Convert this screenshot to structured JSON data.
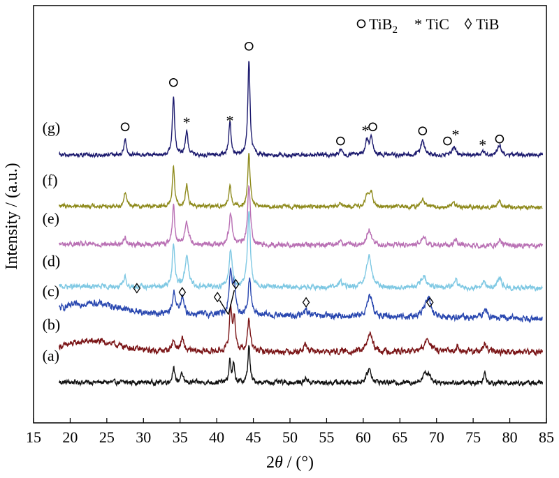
{
  "chart_data": {
    "type": "line",
    "xlabel": {
      "pre": "2",
      "italic": "θ",
      "post": " / (°)"
    },
    "ylabel": "Intensity / (a.u.)",
    "xlim": [
      15,
      85
    ],
    "ylim": [
      0,
      10
    ],
    "xticks": [
      15,
      20,
      25,
      30,
      35,
      40,
      45,
      50,
      55,
      60,
      65,
      70,
      75,
      80,
      85
    ],
    "grid": false,
    "legend": {
      "position": "top-right",
      "entries": [
        {
          "symbol": "circle",
          "label": "TiB",
          "sub": "2"
        },
        {
          "symbol": "star",
          "label": "TiC"
        },
        {
          "symbol": "diamond",
          "label": "TiB"
        }
      ]
    },
    "series": [
      {
        "name": "(a)",
        "color": "#111111",
        "baseline": 0.85,
        "tilt": 0.02,
        "noise": 0.1,
        "hump": 0.0,
        "peaks": [
          [
            34.1,
            0.4,
            0.16
          ],
          [
            35.2,
            0.25,
            0.16
          ],
          [
            41.8,
            0.55,
            0.15
          ],
          [
            42.3,
            0.45,
            0.15
          ],
          [
            44.4,
            0.95,
            0.16
          ],
          [
            52.2,
            0.12,
            0.2
          ],
          [
            60.8,
            0.35,
            0.35
          ],
          [
            68.4,
            0.2,
            0.4
          ],
          [
            69.0,
            0.18,
            0.3
          ],
          [
            76.6,
            0.25,
            0.2
          ]
        ]
      },
      {
        "name": "(b)",
        "color": "#7a1416",
        "baseline": 1.62,
        "tilt": 0.02,
        "noise": 0.12,
        "hump": 0.25,
        "peaks": [
          [
            34.1,
            0.25,
            0.3
          ],
          [
            35.3,
            0.3,
            0.25
          ],
          [
            41.9,
            1.05,
            0.2
          ],
          [
            42.4,
            0.8,
            0.2
          ],
          [
            44.4,
            0.8,
            0.22
          ],
          [
            52.1,
            0.2,
            0.2
          ],
          [
            60.9,
            0.45,
            0.4
          ],
          [
            68.8,
            0.3,
            0.5
          ],
          [
            72.9,
            0.15,
            0.3
          ],
          [
            76.6,
            0.2,
            0.25
          ]
        ]
      },
      {
        "name": "(c)",
        "color": "#2a48b0",
        "baseline": 2.45,
        "tilt": 0.14,
        "noise": 0.13,
        "hump": 0.25,
        "peaks": [
          [
            34.2,
            0.55,
            0.25
          ],
          [
            35.3,
            0.4,
            0.25
          ],
          [
            41.9,
            1.05,
            0.25
          ],
          [
            42.4,
            0.7,
            0.2
          ],
          [
            44.5,
            0.95,
            0.22
          ],
          [
            52.2,
            0.15,
            0.25
          ],
          [
            60.9,
            0.5,
            0.4
          ],
          [
            68.6,
            0.3,
            0.5
          ],
          [
            69.0,
            0.25,
            0.3
          ],
          [
            76.6,
            0.25,
            0.25
          ]
        ]
      },
      {
        "name": "(d)",
        "color": "#7ec8e3",
        "baseline": 3.2,
        "tilt": 0.04,
        "noise": 0.1,
        "hump": 0.0,
        "peaks": [
          [
            27.5,
            0.25,
            0.2
          ],
          [
            34.1,
            1.1,
            0.2
          ],
          [
            35.9,
            0.75,
            0.3
          ],
          [
            41.9,
            0.95,
            0.25
          ],
          [
            44.4,
            1.95,
            0.22
          ],
          [
            56.9,
            0.15,
            0.3
          ],
          [
            60.8,
            0.8,
            0.4
          ],
          [
            68.2,
            0.3,
            0.4
          ],
          [
            72.6,
            0.2,
            0.3
          ],
          [
            76.4,
            0.15,
            0.3
          ],
          [
            78.6,
            0.25,
            0.3
          ]
        ]
      },
      {
        "name": "(e)",
        "color": "#b970b4",
        "baseline": 4.25,
        "tilt": 0.04,
        "noise": 0.1,
        "hump": 0.0,
        "peaks": [
          [
            27.5,
            0.2,
            0.2
          ],
          [
            34.1,
            0.95,
            0.2
          ],
          [
            35.9,
            0.55,
            0.3
          ],
          [
            41.9,
            0.8,
            0.25
          ],
          [
            44.4,
            1.5,
            0.22
          ],
          [
            56.9,
            0.12,
            0.3
          ],
          [
            60.8,
            0.4,
            0.35
          ],
          [
            68.2,
            0.2,
            0.4
          ],
          [
            72.6,
            0.15,
            0.3
          ],
          [
            78.6,
            0.15,
            0.3
          ]
        ]
      },
      {
        "name": "(f)",
        "color": "#8e8a1c",
        "baseline": 5.2,
        "tilt": 0.04,
        "noise": 0.08,
        "hump": 0.0,
        "peaks": [
          [
            27.5,
            0.35,
            0.2
          ],
          [
            34.1,
            0.95,
            0.18
          ],
          [
            35.9,
            0.55,
            0.2
          ],
          [
            41.8,
            0.55,
            0.18
          ],
          [
            44.4,
            1.35,
            0.18
          ],
          [
            56.9,
            0.1,
            0.25
          ],
          [
            60.5,
            0.3,
            0.25
          ],
          [
            61.1,
            0.35,
            0.25
          ],
          [
            68.1,
            0.2,
            0.3
          ],
          [
            72.3,
            0.12,
            0.3
          ],
          [
            78.6,
            0.15,
            0.3
          ]
        ]
      },
      {
        "name": "(g)",
        "color": "#1c1a6e",
        "baseline": 6.5,
        "tilt": 0.0,
        "noise": 0.08,
        "hump": 0.0,
        "peaks": [
          [
            27.5,
            0.42,
            0.18
          ],
          [
            34.1,
            1.45,
            0.18
          ],
          [
            35.9,
            0.6,
            0.2
          ],
          [
            41.8,
            0.85,
            0.18
          ],
          [
            44.4,
            2.35,
            0.18
          ],
          [
            56.9,
            0.15,
            0.25
          ],
          [
            60.5,
            0.35,
            0.25
          ],
          [
            61.1,
            0.4,
            0.25
          ],
          [
            68.1,
            0.35,
            0.3
          ],
          [
            72.4,
            0.2,
            0.3
          ],
          [
            76.3,
            0.1,
            0.25
          ],
          [
            78.6,
            0.25,
            0.3
          ]
        ]
      }
    ],
    "annotations": [
      {
        "symbol": "circle",
        "x": 27.5,
        "y": 7.2
      },
      {
        "symbol": "circle",
        "x": 34.1,
        "y": 8.3
      },
      {
        "symbol": "star",
        "x": 35.9,
        "y": 7.35
      },
      {
        "symbol": "star",
        "x": 41.8,
        "y": 7.4
      },
      {
        "symbol": "circle",
        "x": 44.4,
        "y": 9.2
      },
      {
        "symbol": "circle",
        "x": 56.9,
        "y": 6.85
      },
      {
        "symbol": "star",
        "x": 60.3,
        "y": 7.15
      },
      {
        "symbol": "circle",
        "x": 61.3,
        "y": 7.2
      },
      {
        "symbol": "circle",
        "x": 68.1,
        "y": 7.1
      },
      {
        "symbol": "circle",
        "x": 71.5,
        "y": 6.85
      },
      {
        "symbol": "star",
        "x": 72.6,
        "y": 7.05
      },
      {
        "symbol": "star",
        "x": 76.3,
        "y": 6.8
      },
      {
        "symbol": "circle",
        "x": 78.6,
        "y": 6.9
      },
      {
        "symbol": "diamond",
        "x": 29.1,
        "y": 3.2
      },
      {
        "symbol": "diamond",
        "x": 35.3,
        "y": 3.1
      },
      {
        "symbol": "diamond",
        "x": 40.1,
        "y": 2.98
      },
      {
        "symbol": "diamond",
        "x": 42.6,
        "y": 3.3
      },
      {
        "symbol": "diamond",
        "x": 52.2,
        "y": 2.85
      },
      {
        "symbol": "diamond",
        "x": 69.1,
        "y": 2.85
      }
    ]
  }
}
